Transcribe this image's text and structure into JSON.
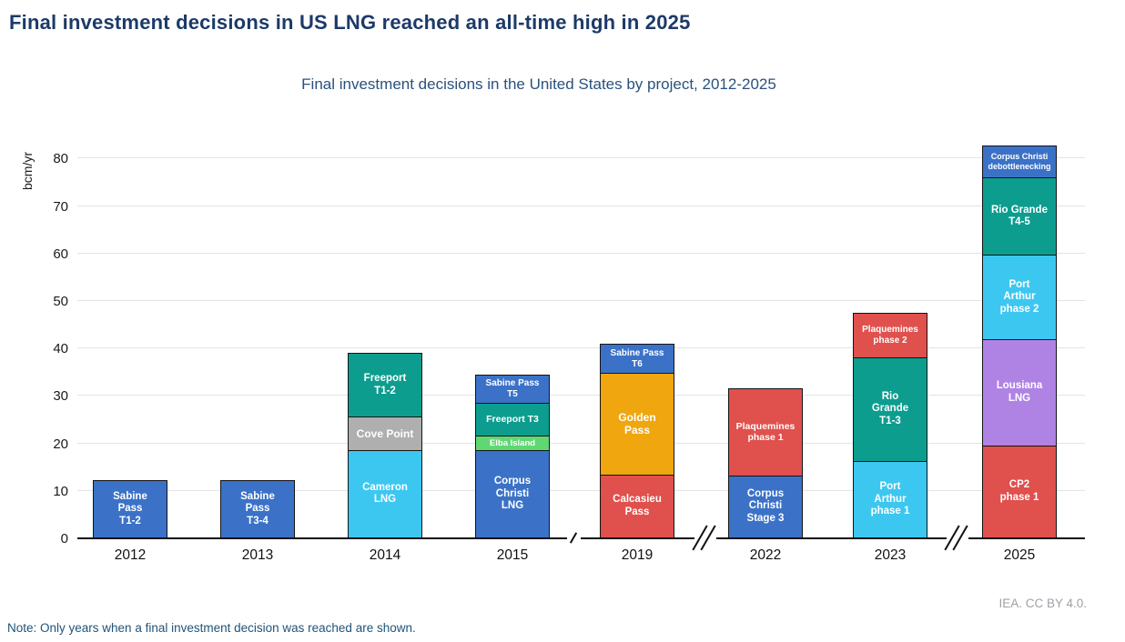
{
  "header": {
    "title": "Final investment decisions in US LNG reached an all-time high in 2025",
    "subtitle": "Final investment decisions in the United States by project, 2012-2025"
  },
  "footer": {
    "note": "Note: Only years when a final investment decision was reached are shown.",
    "attribution": "IEA. CC BY 4.0."
  },
  "colors": {
    "blue": "#3b72c7",
    "teal": "#0d9d8f",
    "cyan": "#3cc7f0",
    "gray": "#afafaf",
    "green": "#5fd873",
    "red": "#e0504d",
    "orange": "#f0a60e",
    "purple": "#af83e4",
    "segment_border": "#141414",
    "grid": "#e3e3e3",
    "title_text": "#1c3a68",
    "subtitle_text": "#29527d",
    "note_text": "#1f5378",
    "attribution_text": "#9da2a7"
  },
  "chart_data": {
    "type": "bar",
    "stacked": true,
    "title": "Final investment decisions in US LNG reached an all-time high in 2025",
    "subtitle": "Final investment decisions in the United States by project, 2012-2025",
    "xlabel": "",
    "ylabel": "bcm/yr",
    "ylim": [
      0,
      80
    ],
    "ytick_step": 10,
    "grid": "horizontal",
    "legend": "none (labels inside segments)",
    "categories": [
      "2012",
      "2013",
      "2014",
      "2015",
      "2019",
      "2022",
      "2023",
      "2025"
    ],
    "axis_breaks_after": [
      "2015",
      "2019",
      "2023"
    ],
    "bars": [
      {
        "category": "2012",
        "total": 12.3,
        "segments": [
          {
            "project": "Sabine Pass T1-2",
            "lines": [
              "Sabine",
              "Pass",
              "T1-2"
            ],
            "value": 12.3,
            "color_key": "blue"
          }
        ]
      },
      {
        "category": "2013",
        "total": 12.3,
        "segments": [
          {
            "project": "Sabine Pass T3-4",
            "lines": [
              "Sabine",
              "Pass",
              "T3-4"
            ],
            "value": 12.3,
            "color_key": "blue"
          }
        ]
      },
      {
        "category": "2014",
        "total": 39.1,
        "segments": [
          {
            "project": "Cameron LNG",
            "lines": [
              "Cameron",
              "LNG"
            ],
            "value": 18.6,
            "color_key": "cyan"
          },
          {
            "project": "Cove Point",
            "lines": [
              "Cove Point"
            ],
            "value": 7.1,
            "color_key": "gray",
            "fs": 12
          },
          {
            "project": "Freeport T1-2",
            "lines": [
              "Freeport",
              "T1-2"
            ],
            "value": 13.4,
            "color_key": "teal"
          }
        ]
      },
      {
        "category": "2015",
        "total": 34.5,
        "segments": [
          {
            "project": "Corpus Christi LNG",
            "lines": [
              "Corpus",
              "Christi",
              "LNG"
            ],
            "value": 18.6,
            "color_key": "blue"
          },
          {
            "project": "Elba Island",
            "lines": [
              "Elba Island"
            ],
            "value": 3.2,
            "color_key": "green",
            "fs": 9.5
          },
          {
            "project": "Freeport T3",
            "lines": [
              "Freeport T3"
            ],
            "value": 6.9,
            "color_key": "teal",
            "fs": 10.5
          },
          {
            "project": "Sabine Pass T5",
            "lines": [
              "Sabine Pass",
              "T5"
            ],
            "value": 5.8,
            "color_key": "blue",
            "fs": 10
          }
        ]
      },
      {
        "category": "2019",
        "total": 41.0,
        "segments": [
          {
            "project": "Calcasieu Pass",
            "lines": [
              "Calcasieu",
              "Pass"
            ],
            "value": 13.6,
            "color_key": "red"
          },
          {
            "project": "Golden Pass",
            "lines": [
              "Golden",
              "Pass"
            ],
            "value": 21.3,
            "color_key": "orange",
            "fs": 12
          },
          {
            "project": "Sabine Pass T6",
            "lines": [
              "Sabine Pass",
              "T6"
            ],
            "value": 6.1,
            "color_key": "blue",
            "fs": 10
          }
        ]
      },
      {
        "category": "2022",
        "total": 31.6,
        "segments": [
          {
            "project": "Corpus Christi Stage 3",
            "lines": [
              "Corpus",
              "Christi",
              "Stage 3"
            ],
            "value": 13.4,
            "color_key": "blue"
          },
          {
            "project": "Plaquemines phase 1",
            "lines": [
              "Plaquemines",
              "phase 1"
            ],
            "value": 18.2,
            "color_key": "red",
            "fs": 10.5
          }
        ]
      },
      {
        "category": "2023",
        "total": 47.5,
        "segments": [
          {
            "project": "Port Arthur phase 1",
            "lines": [
              "Port",
              "Arthur",
              "phase 1"
            ],
            "value": 16.3,
            "color_key": "cyan"
          },
          {
            "project": "Rio Grande T1-3",
            "lines": [
              "Rio",
              "Grande",
              "T1-3"
            ],
            "value": 22.0,
            "color_key": "teal"
          },
          {
            "project": "Plaquemines phase 2",
            "lines": [
              "Plaquemines",
              "phase 2"
            ],
            "value": 9.2,
            "color_key": "red",
            "fs": 10
          }
        ]
      },
      {
        "category": "2025",
        "total": 82.8,
        "segments": [
          {
            "project": "CP2 phase 1",
            "lines": [
              "CP2",
              "phase 1"
            ],
            "value": 19.6,
            "color_key": "red"
          },
          {
            "project": "Lousiana LNG",
            "lines": [
              "Lousiana",
              "LNG"
            ],
            "value": 22.4,
            "color_key": "purple"
          },
          {
            "project": "Port Arthur phase 2",
            "lines": [
              "Port",
              "Arthur",
              "phase 2"
            ],
            "value": 17.8,
            "color_key": "cyan"
          },
          {
            "project": "Rio Grande T4-5",
            "lines": [
              "Rio Grande",
              "T4-5"
            ],
            "value": 16.3,
            "color_key": "teal"
          },
          {
            "project": "Corpus Christi debottlenecking",
            "lines": [
              "Corpus Christi",
              "debottlenecking"
            ],
            "value": 6.7,
            "color_key": "blue",
            "fs": 9
          }
        ]
      }
    ]
  }
}
